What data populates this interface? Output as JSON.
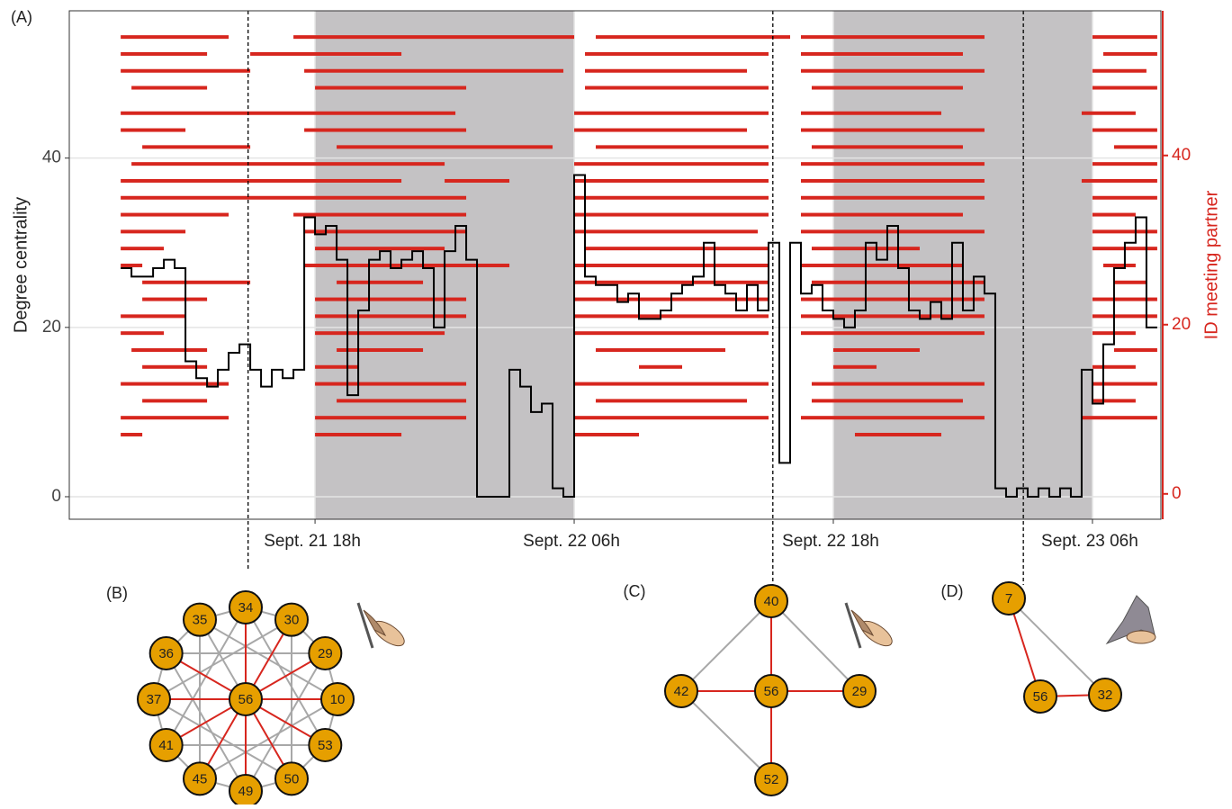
{
  "chart_data": {
    "type": "line",
    "panel_label": "(A)",
    "y_label": "Degree centrality",
    "y2_label": "ID meeting partner",
    "xlim": [
      6.62,
      57.17
    ],
    "xticks": [
      {
        "value": 18,
        "label": "Sept. 21 18h"
      },
      {
        "value": 30,
        "label": "Sept. 22 06h"
      },
      {
        "value": 42,
        "label": "Sept. 22 18h"
      },
      {
        "value": 54,
        "label": "Sept. 23 06h"
      }
    ],
    "ylim": [
      -2.66,
      57.4
    ],
    "yticks": [
      0,
      20,
      40
    ],
    "y2lim": [
      -3,
      57.1
    ],
    "y2ticks": [
      0,
      20,
      40
    ],
    "grid": true,
    "night": [
      [
        18,
        30
      ],
      [
        42,
        54
      ]
    ],
    "events": [
      14.9,
      39.2,
      50.8
    ],
    "line_color": "#000000",
    "meeting_color": "#d7261e",
    "x": [
      9,
      9.5,
      10,
      10.5,
      11,
      11.5,
      12,
      12.5,
      13,
      13.5,
      14,
      14.5,
      15,
      15.5,
      16,
      16.5,
      17,
      17.5,
      18,
      18.5,
      19,
      19.5,
      20,
      20.5,
      21,
      21.5,
      22,
      22.5,
      23,
      23.5,
      24,
      24.5,
      25,
      25.5,
      26,
      26.5,
      27,
      27.5,
      28,
      28.5,
      29,
      29.5,
      30,
      30.5,
      31,
      31.5,
      32,
      32.5,
      33,
      33.5,
      34,
      34.5,
      35,
      35.5,
      36,
      36.5,
      37,
      37.5,
      38,
      38.5,
      39,
      39.5,
      40,
      40.5,
      41,
      41.5,
      42,
      42.5,
      43,
      43.5,
      44,
      44.5,
      45,
      45.5,
      46,
      46.5,
      47,
      47.5,
      48,
      48.5,
      49,
      49.5,
      50,
      50.5,
      51,
      51.5,
      52,
      52.5,
      53,
      53.5,
      54,
      54.5,
      55,
      55.5,
      56,
      56.5,
      57
    ],
    "values": [
      27,
      26,
      26,
      27,
      28,
      27,
      16,
      14,
      13,
      15,
      17,
      18,
      15,
      13,
      15,
      14,
      15,
      33,
      31,
      32,
      28,
      12,
      22,
      28,
      29,
      27,
      28,
      29,
      27,
      20,
      29,
      32,
      28,
      0,
      0,
      0,
      15,
      13,
      10,
      11,
      1,
      0,
      38,
      26,
      25,
      25,
      23,
      24,
      21,
      21,
      22,
      24,
      25,
      26,
      30,
      25,
      24,
      22,
      25,
      22,
      30,
      4,
      30,
      24,
      25,
      22,
      21,
      20,
      22,
      30,
      28,
      32,
      27,
      22,
      21,
      23,
      21,
      30,
      22,
      26,
      24,
      1,
      0,
      1,
      0,
      1,
      0,
      1,
      0,
      15,
      11,
      18,
      27,
      30,
      33,
      20,
      20
    ],
    "meetings": [
      {
        "partner": 54,
        "intervals": [
          [
            9,
            14
          ],
          [
            17,
            30
          ],
          [
            31,
            40
          ],
          [
            40.5,
            49
          ],
          [
            54,
            57
          ]
        ]
      },
      {
        "partner": 52,
        "intervals": [
          [
            9,
            13
          ],
          [
            15,
            22
          ],
          [
            30.5,
            39
          ],
          [
            40.5,
            48
          ],
          [
            54.5,
            57
          ]
        ]
      },
      {
        "partner": 50,
        "intervals": [
          [
            9,
            15
          ],
          [
            17.5,
            29.5
          ],
          [
            30.5,
            38
          ],
          [
            40.5,
            49
          ],
          [
            54,
            56.5
          ]
        ]
      },
      {
        "partner": 48,
        "intervals": [
          [
            9.5,
            13
          ],
          [
            18,
            25
          ],
          [
            30.5,
            39
          ],
          [
            41,
            48
          ],
          [
            54,
            57
          ]
        ]
      },
      {
        "partner": 45,
        "intervals": [
          [
            9,
            24.5
          ],
          [
            30,
            39
          ],
          [
            40.5,
            47
          ],
          [
            53.5,
            56
          ]
        ]
      },
      {
        "partner": 43,
        "intervals": [
          [
            9,
            12
          ],
          [
            17.5,
            25
          ],
          [
            30,
            38
          ],
          [
            40.5,
            49
          ],
          [
            54,
            57
          ]
        ]
      },
      {
        "partner": 41,
        "intervals": [
          [
            10,
            15
          ],
          [
            19,
            29
          ],
          [
            31,
            39
          ],
          [
            41,
            48
          ],
          [
            55,
            57
          ]
        ]
      },
      {
        "partner": 39,
        "intervals": [
          [
            9.5,
            24
          ],
          [
            30,
            39
          ],
          [
            40.5,
            49
          ],
          [
            54,
            57
          ]
        ]
      },
      {
        "partner": 37,
        "intervals": [
          [
            9,
            22
          ],
          [
            24,
            27
          ],
          [
            30,
            39
          ],
          [
            40.5,
            49
          ],
          [
            53.5,
            57
          ]
        ]
      },
      {
        "partner": 35,
        "intervals": [
          [
            9,
            25
          ],
          [
            30,
            39
          ],
          [
            40.5,
            49
          ],
          [
            54,
            57
          ]
        ]
      },
      {
        "partner": 33,
        "intervals": [
          [
            9,
            14
          ],
          [
            17,
            25
          ],
          [
            30,
            39
          ],
          [
            40.5,
            48
          ],
          [
            54,
            56
          ]
        ]
      },
      {
        "partner": 31,
        "intervals": [
          [
            9,
            12
          ],
          [
            17.5,
            25
          ],
          [
            30,
            38.5
          ],
          [
            40.5,
            49
          ],
          [
            54,
            57
          ]
        ]
      },
      {
        "partner": 29,
        "intervals": [
          [
            9,
            11
          ],
          [
            18,
            24
          ],
          [
            30.5,
            39
          ],
          [
            41,
            46
          ],
          [
            54,
            57
          ]
        ]
      },
      {
        "partner": 27,
        "intervals": [
          [
            9,
            10
          ],
          [
            17.5,
            27
          ],
          [
            30,
            39
          ],
          [
            40.5,
            48
          ],
          [
            54.5,
            56
          ]
        ]
      },
      {
        "partner": 25,
        "intervals": [
          [
            10,
            15
          ],
          [
            19,
            23
          ],
          [
            30,
            39
          ],
          [
            41,
            49
          ],
          [
            55,
            56.5
          ]
        ]
      },
      {
        "partner": 23,
        "intervals": [
          [
            10,
            13
          ],
          [
            18,
            25
          ],
          [
            30,
            39
          ],
          [
            40.5,
            49
          ],
          [
            54,
            57
          ]
        ]
      },
      {
        "partner": 21,
        "intervals": [
          [
            9,
            12
          ],
          [
            18,
            25
          ],
          [
            30,
            39
          ],
          [
            40.5,
            49
          ],
          [
            54,
            57
          ]
        ]
      },
      {
        "partner": 19,
        "intervals": [
          [
            9,
            11
          ],
          [
            18,
            24
          ],
          [
            30,
            39
          ],
          [
            40.5,
            49
          ],
          [
            54,
            56
          ]
        ]
      },
      {
        "partner": 17,
        "intervals": [
          [
            9.5,
            13
          ],
          [
            19,
            23
          ],
          [
            31,
            37
          ],
          [
            42,
            46
          ],
          [
            55,
            57
          ]
        ]
      },
      {
        "partner": 15,
        "intervals": [
          [
            10,
            13
          ],
          [
            18,
            20
          ],
          [
            33,
            35
          ],
          [
            42,
            44
          ],
          [
            54,
            56
          ]
        ]
      },
      {
        "partner": 13,
        "intervals": [
          [
            9,
            14
          ],
          [
            18,
            25
          ],
          [
            30,
            39
          ],
          [
            41,
            49
          ],
          [
            54,
            57
          ]
        ]
      },
      {
        "partner": 11,
        "intervals": [
          [
            10,
            13
          ],
          [
            19,
            25
          ],
          [
            31,
            38
          ],
          [
            41,
            48
          ],
          [
            54,
            56
          ]
        ]
      },
      {
        "partner": 9,
        "intervals": [
          [
            9,
            14
          ],
          [
            18,
            25
          ],
          [
            30,
            39
          ],
          [
            40.5,
            49
          ],
          [
            53.5,
            57
          ]
        ]
      },
      {
        "partner": 7,
        "intervals": [
          [
            9,
            10
          ],
          [
            18,
            22
          ],
          [
            30,
            33
          ],
          [
            43,
            47
          ]
        ]
      }
    ]
  },
  "networks": [
    {
      "panel_label": "(B)",
      "nodes": [
        "35",
        "34",
        "30",
        "29",
        "10",
        "53",
        "50",
        "49",
        "45",
        "41",
        "37",
        "36",
        "56"
      ],
      "strong_edges": [
        [
          12,
          1
        ],
        [
          12,
          2
        ],
        [
          12,
          3
        ],
        [
          12,
          4
        ],
        [
          12,
          5
        ],
        [
          12,
          6
        ],
        [
          12,
          7
        ],
        [
          12,
          8
        ],
        [
          12,
          9
        ],
        [
          12,
          10
        ],
        [
          12,
          11
        ]
      ],
      "weak_edges": [
        [
          0,
          1
        ],
        [
          1,
          2
        ],
        [
          2,
          3
        ],
        [
          3,
          4
        ],
        [
          4,
          5
        ],
        [
          5,
          6
        ],
        [
          6,
          7
        ],
        [
          7,
          8
        ],
        [
          8,
          9
        ],
        [
          9,
          10
        ],
        [
          10,
          11
        ],
        [
          11,
          0
        ],
        [
          0,
          4
        ],
        [
          1,
          5
        ],
        [
          2,
          6
        ],
        [
          3,
          7
        ],
        [
          4,
          8
        ],
        [
          5,
          9
        ],
        [
          6,
          10
        ],
        [
          7,
          11
        ],
        [
          8,
          0
        ],
        [
          9,
          1
        ],
        [
          10,
          2
        ],
        [
          11,
          3
        ],
        [
          12,
          0
        ]
      ]
    },
    {
      "panel_label": "(C)",
      "nodes": [
        "40",
        "42",
        "56",
        "29",
        "52"
      ],
      "strong_edges": [
        [
          0,
          2
        ],
        [
          1,
          2
        ],
        [
          2,
          3
        ],
        [
          2,
          4
        ]
      ],
      "weak_edges": [
        [
          0,
          1
        ],
        [
          0,
          3
        ],
        [
          1,
          4
        ]
      ]
    },
    {
      "panel_label": "(D)",
      "nodes": [
        "7",
        "56",
        "32"
      ],
      "strong_edges": [
        [
          0,
          1
        ],
        [
          1,
          2
        ]
      ],
      "weak_edges": [
        [
          0,
          2
        ]
      ]
    }
  ],
  "node_color": "#e69f00",
  "strong_edge_color": "#d7261e",
  "weak_edge_color": "#a8a8a8"
}
